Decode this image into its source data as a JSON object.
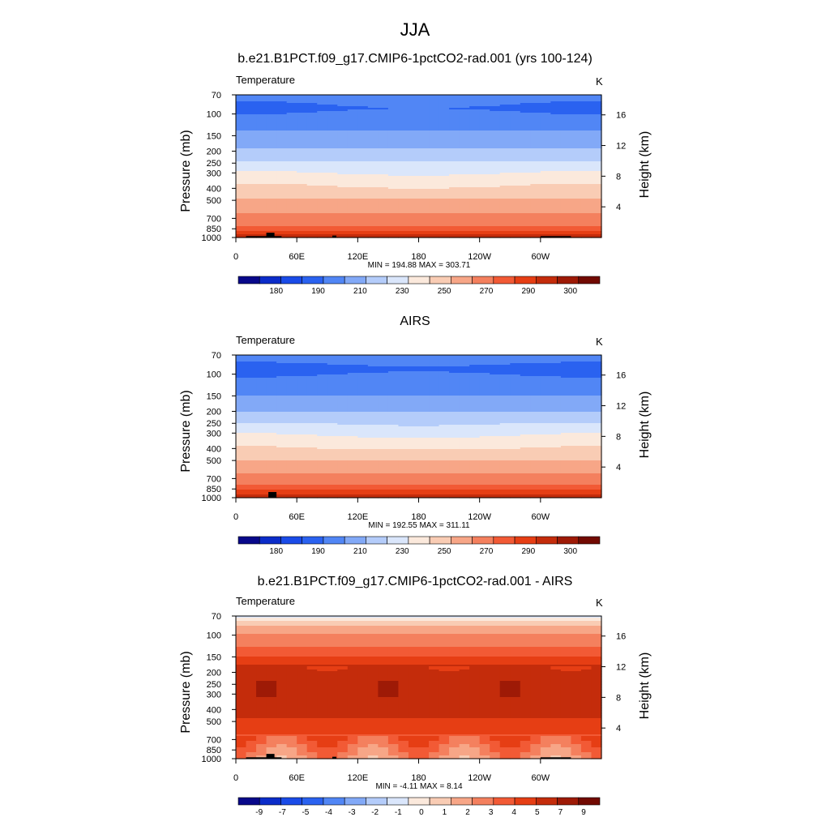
{
  "figure_title": "JJA",
  "colors": {
    "temp_levels": [
      "#08088a",
      "#0b2cc9",
      "#1a4be8",
      "#2a62f0",
      "#5186f5",
      "#82a9f7",
      "#b4ccfa",
      "#dae6fb",
      "#fbe9dc",
      "#f9ccb4",
      "#f7a687",
      "#f4805e",
      "#f25a35",
      "#e63e14",
      "#c42c0b",
      "#9e1a06",
      "#720a02"
    ],
    "diff_levels": [
      "#08088a",
      "#0b2cc9",
      "#1a4be8",
      "#2a62f0",
      "#5186f5",
      "#82a9f7",
      "#b4ccfa",
      "#dae6fb",
      "#fbe9dc",
      "#f9ccb4",
      "#f7a687",
      "#f4805e",
      "#f25a35",
      "#e63e14",
      "#c42c0b",
      "#9e1a06",
      "#720a02"
    ],
    "topography": "#000000"
  },
  "chart_data": [
    {
      "type": "heatmap",
      "title": "b.e21.B1PCT.f09_g17.CMIP6-1pctCO2-rad.001 (yrs 100-124)",
      "left_label": "Temperature",
      "units": "K",
      "ylabel": "Pressure (mb)",
      "ylabel_right": "Height (km)",
      "y_ticks": [
        "70",
        "100",
        "150",
        "200",
        "250",
        "300",
        "400",
        "500",
        "700",
        "850",
        "1000"
      ],
      "y_tick_values": [
        70,
        100,
        150,
        200,
        250,
        300,
        400,
        500,
        700,
        850,
        1000
      ],
      "ylim": [
        1000,
        70
      ],
      "y_right_ticks": [
        "4",
        "8",
        "12",
        "16"
      ],
      "y_right_values": [
        4,
        8,
        12,
        16
      ],
      "x_ticks": [
        "0",
        "60E",
        "120E",
        "180",
        "120W",
        "60W"
      ],
      "x_tick_values": [
        0,
        60,
        120,
        180,
        240,
        300
      ],
      "xlim": [
        0,
        360
      ],
      "stats": "MIN = 194.88  MAX = 303.71",
      "colorbar_labels": [
        "180",
        "190",
        "210",
        "230",
        "250",
        "270",
        "290",
        "300"
      ],
      "profile": [
        [
          70,
          205
        ],
        [
          90,
          198
        ],
        [
          110,
          205
        ],
        [
          150,
          212
        ],
        [
          200,
          222
        ],
        [
          250,
          232
        ],
        [
          300,
          240
        ],
        [
          400,
          252
        ],
        [
          500,
          261
        ],
        [
          600,
          267
        ],
        [
          700,
          274
        ],
        [
          800,
          280
        ],
        [
          850,
          283
        ],
        [
          925,
          288
        ],
        [
          1000,
          294
        ]
      ],
      "surface": true,
      "levels": [
        175,
        180,
        185,
        190,
        200,
        210,
        220,
        230,
        240,
        250,
        260,
        270,
        280,
        285,
        290,
        295,
        300
      ]
    },
    {
      "type": "heatmap",
      "title": "AIRS",
      "left_label": "Temperature",
      "units": "K",
      "ylabel": "Pressure (mb)",
      "ylabel_right": "Height (km)",
      "y_ticks": [
        "70",
        "100",
        "150",
        "200",
        "250",
        "300",
        "400",
        "500",
        "700",
        "850",
        "1000"
      ],
      "y_tick_values": [
        70,
        100,
        150,
        200,
        250,
        300,
        400,
        500,
        700,
        850,
        1000
      ],
      "ylim": [
        1000,
        70
      ],
      "y_right_ticks": [
        "4",
        "8",
        "12",
        "16"
      ],
      "y_right_values": [
        4,
        8,
        12,
        16
      ],
      "x_ticks": [
        "0",
        "60E",
        "120E",
        "180",
        "120W",
        "60W"
      ],
      "x_tick_values": [
        0,
        60,
        120,
        180,
        240,
        300
      ],
      "xlim": [
        0,
        360
      ],
      "stats": "MIN = 192.55  MAX = 311.11",
      "colorbar_labels": [
        "180",
        "190",
        "210",
        "230",
        "250",
        "270",
        "290",
        "300"
      ],
      "profile": [
        [
          70,
          208
        ],
        [
          90,
          196
        ],
        [
          110,
          203
        ],
        [
          150,
          210
        ],
        [
          200,
          220
        ],
        [
          250,
          230
        ],
        [
          300,
          238
        ],
        [
          400,
          250
        ],
        [
          500,
          260
        ],
        [
          600,
          267
        ],
        [
          700,
          274
        ],
        [
          800,
          281
        ],
        [
          850,
          284
        ],
        [
          925,
          289
        ],
        [
          1000,
          295
        ]
      ],
      "surface": true,
      "levels": [
        175,
        180,
        185,
        190,
        200,
        210,
        220,
        230,
        240,
        250,
        260,
        270,
        280,
        285,
        290,
        295,
        300
      ]
    },
    {
      "type": "heatmap",
      "title": "b.e21.B1PCT.f09_g17.CMIP6-1pctCO2-rad.001 - AIRS",
      "left_label": "Temperature",
      "units": "K",
      "ylabel": "Pressure (mb)",
      "ylabel_right": "Height (km)",
      "y_ticks": [
        "70",
        "100",
        "150",
        "200",
        "250",
        "300",
        "400",
        "500",
        "700",
        "850",
        "1000"
      ],
      "y_tick_values": [
        70,
        100,
        150,
        200,
        250,
        300,
        400,
        500,
        700,
        850,
        1000
      ],
      "ylim": [
        1000,
        70
      ],
      "y_right_ticks": [
        "4",
        "8",
        "12",
        "16"
      ],
      "y_right_values": [
        4,
        8,
        12,
        16
      ],
      "x_ticks": [
        "0",
        "60E",
        "120E",
        "180",
        "120W",
        "60W"
      ],
      "x_tick_values": [
        0,
        60,
        120,
        180,
        240,
        300
      ],
      "xlim": [
        0,
        360
      ],
      "stats": "MIN =  -4.11  MAX =   8.14",
      "colorbar_labels": [
        "-9",
        "-7",
        "-5",
        "-4",
        "-3",
        "-2",
        "-1",
        "0",
        "1",
        "2",
        "3",
        "4",
        "5",
        "7",
        "9"
      ],
      "profile": [
        [
          70,
          -1.5
        ],
        [
          80,
          0.5
        ],
        [
          90,
          1.5
        ],
        [
          100,
          2.2
        ],
        [
          130,
          3.2
        ],
        [
          170,
          4.8
        ],
        [
          200,
          6.0
        ],
        [
          300,
          6.2
        ],
        [
          400,
          5.4
        ],
        [
          500,
          4.8
        ],
        [
          600,
          4.2
        ],
        [
          700,
          3.6
        ],
        [
          850,
          2.6
        ],
        [
          1000,
          2.0
        ]
      ],
      "surface": true,
      "levels": [
        -10,
        -9,
        -8,
        -7,
        -5,
        -4,
        -3,
        -2,
        -1,
        0,
        1,
        2,
        3,
        4,
        5,
        7,
        9
      ]
    }
  ]
}
